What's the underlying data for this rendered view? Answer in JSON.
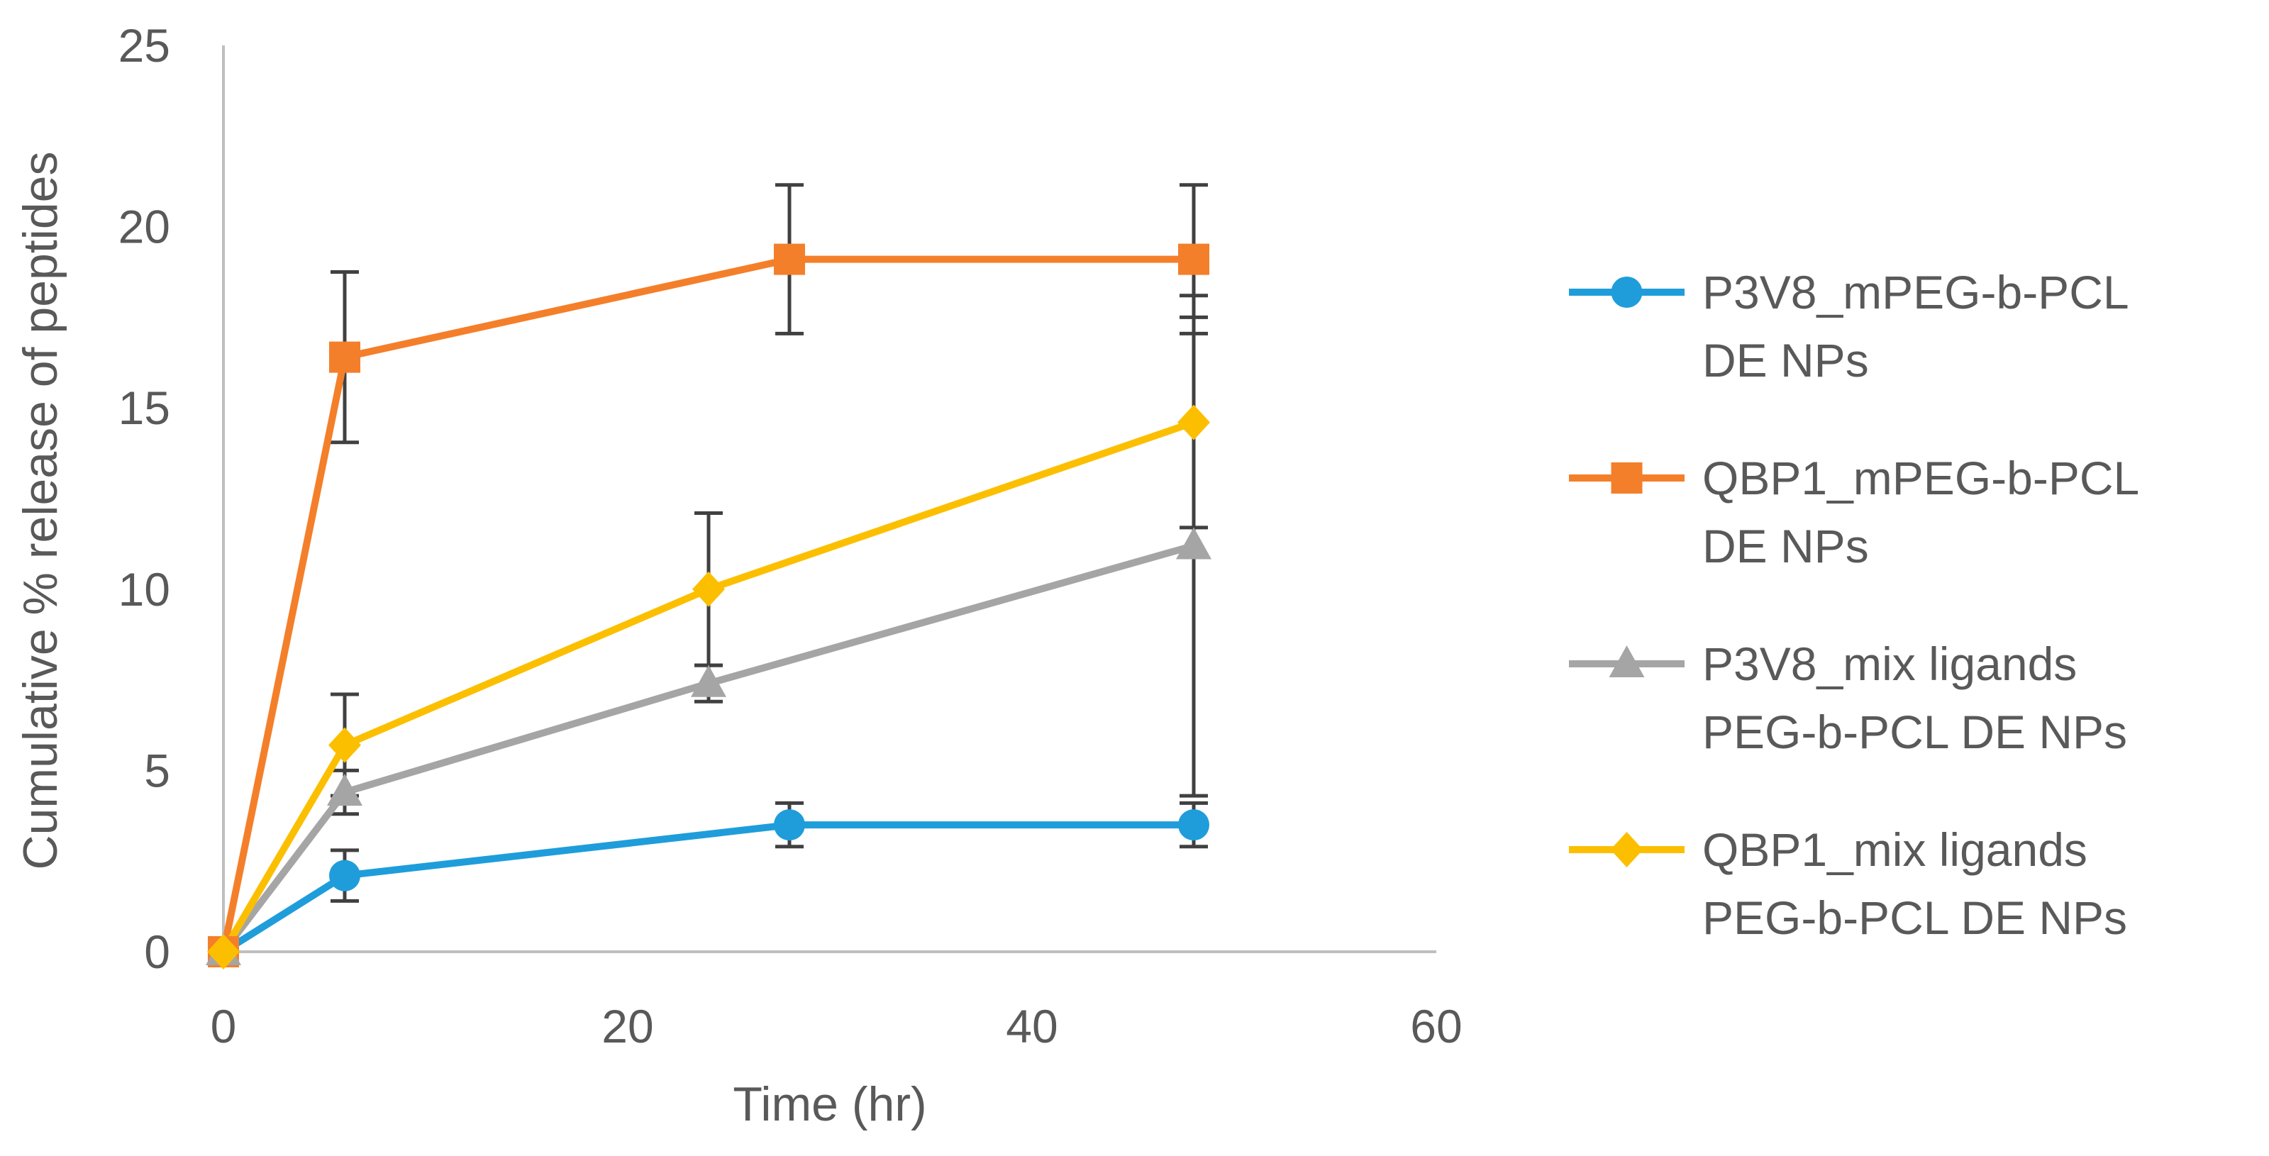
{
  "chart_data": {
    "type": "line",
    "title": "",
    "xlabel": "Time (hr)",
    "ylabel": "Cumulative % release  of peptides",
    "xlim": [
      0,
      60
    ],
    "ylim": [
      0,
      25
    ],
    "xticks": [
      0,
      20,
      40,
      60
    ],
    "yticks": [
      0,
      5,
      10,
      15,
      20,
      25
    ],
    "grid": false,
    "legend_position": "right",
    "series": [
      {
        "name": "P3V8_mPEG-b-PCL DE NPs",
        "name_lines": [
          "P3V8_mPEG-b-PCL",
          "DE NPs"
        ],
        "color": "#1f9ddb",
        "marker": "circle",
        "x": [
          0,
          6,
          28,
          48
        ],
        "y": [
          0,
          2.1,
          3.5,
          3.5
        ],
        "error": [
          0,
          0.7,
          0.6,
          0.6
        ]
      },
      {
        "name": "QBP1_mPEG-b-PCL DE NPs",
        "name_lines": [
          "QBP1_mPEG-b-PCL",
          "DE NPs"
        ],
        "color": "#f47f2a",
        "marker": "square",
        "x": [
          0,
          6,
          28,
          48
        ],
        "y": [
          0,
          16.4,
          19.1,
          19.1
        ],
        "error": [
          0,
          2.35,
          2.05,
          2.05
        ]
      },
      {
        "name": "P3V8_mix ligands PEG-b-PCL DE NPs",
        "name_lines": [
          "P3V8_mix ligands",
          "PEG-b-PCL DE NPs"
        ],
        "color": "#a5a5a5",
        "marker": "triangle",
        "x": [
          0,
          6,
          24,
          48
        ],
        "y": [
          0,
          4.4,
          7.4,
          11.2
        ],
        "error": [
          0,
          0.6,
          0.5,
          6.9
        ]
      },
      {
        "name": "QBP1_mix ligands PEG-b-PCL DE NPs",
        "name_lines": [
          "QBP1_mix ligands",
          "PEG-b-PCL DE NPs"
        ],
        "color": "#fcbf00",
        "marker": "diamond",
        "x": [
          0,
          6,
          24,
          48
        ],
        "y": [
          0,
          5.7,
          10.0,
          14.6
        ],
        "error": [
          0,
          1.4,
          2.1,
          2.9
        ]
      }
    ]
  }
}
